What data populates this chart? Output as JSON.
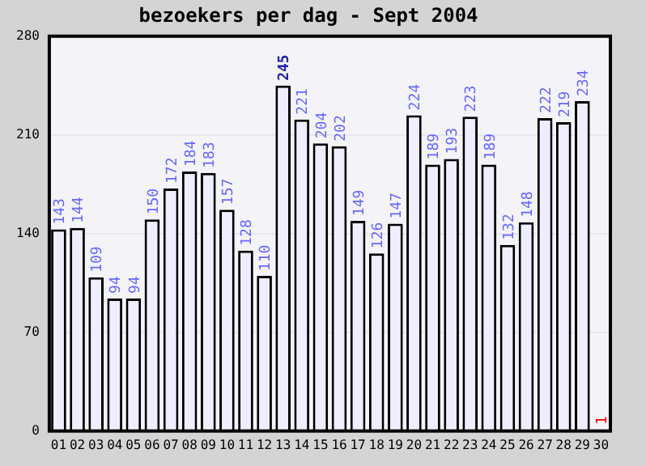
{
  "chart_data": {
    "type": "bar",
    "title": "bezoekers per dag - Sept 2004",
    "categories": [
      "01",
      "02",
      "03",
      "04",
      "05",
      "06",
      "07",
      "08",
      "09",
      "10",
      "11",
      "12",
      "13",
      "14",
      "15",
      "16",
      "17",
      "18",
      "19",
      "20",
      "21",
      "22",
      "23",
      "24",
      "25",
      "26",
      "27",
      "28",
      "29",
      "30"
    ],
    "values": [
      143,
      144,
      109,
      94,
      94,
      150,
      172,
      184,
      183,
      157,
      128,
      110,
      245,
      221,
      204,
      202,
      149,
      126,
      147,
      224,
      189,
      193,
      223,
      189,
      132,
      148,
      222,
      219,
      234,
      1
    ],
    "color": "#eeeeff",
    "ylim": [
      0,
      280
    ],
    "yticks": [
      0,
      70,
      140,
      210,
      280
    ],
    "grid": "y",
    "data_labels": true,
    "legend": false
  }
}
